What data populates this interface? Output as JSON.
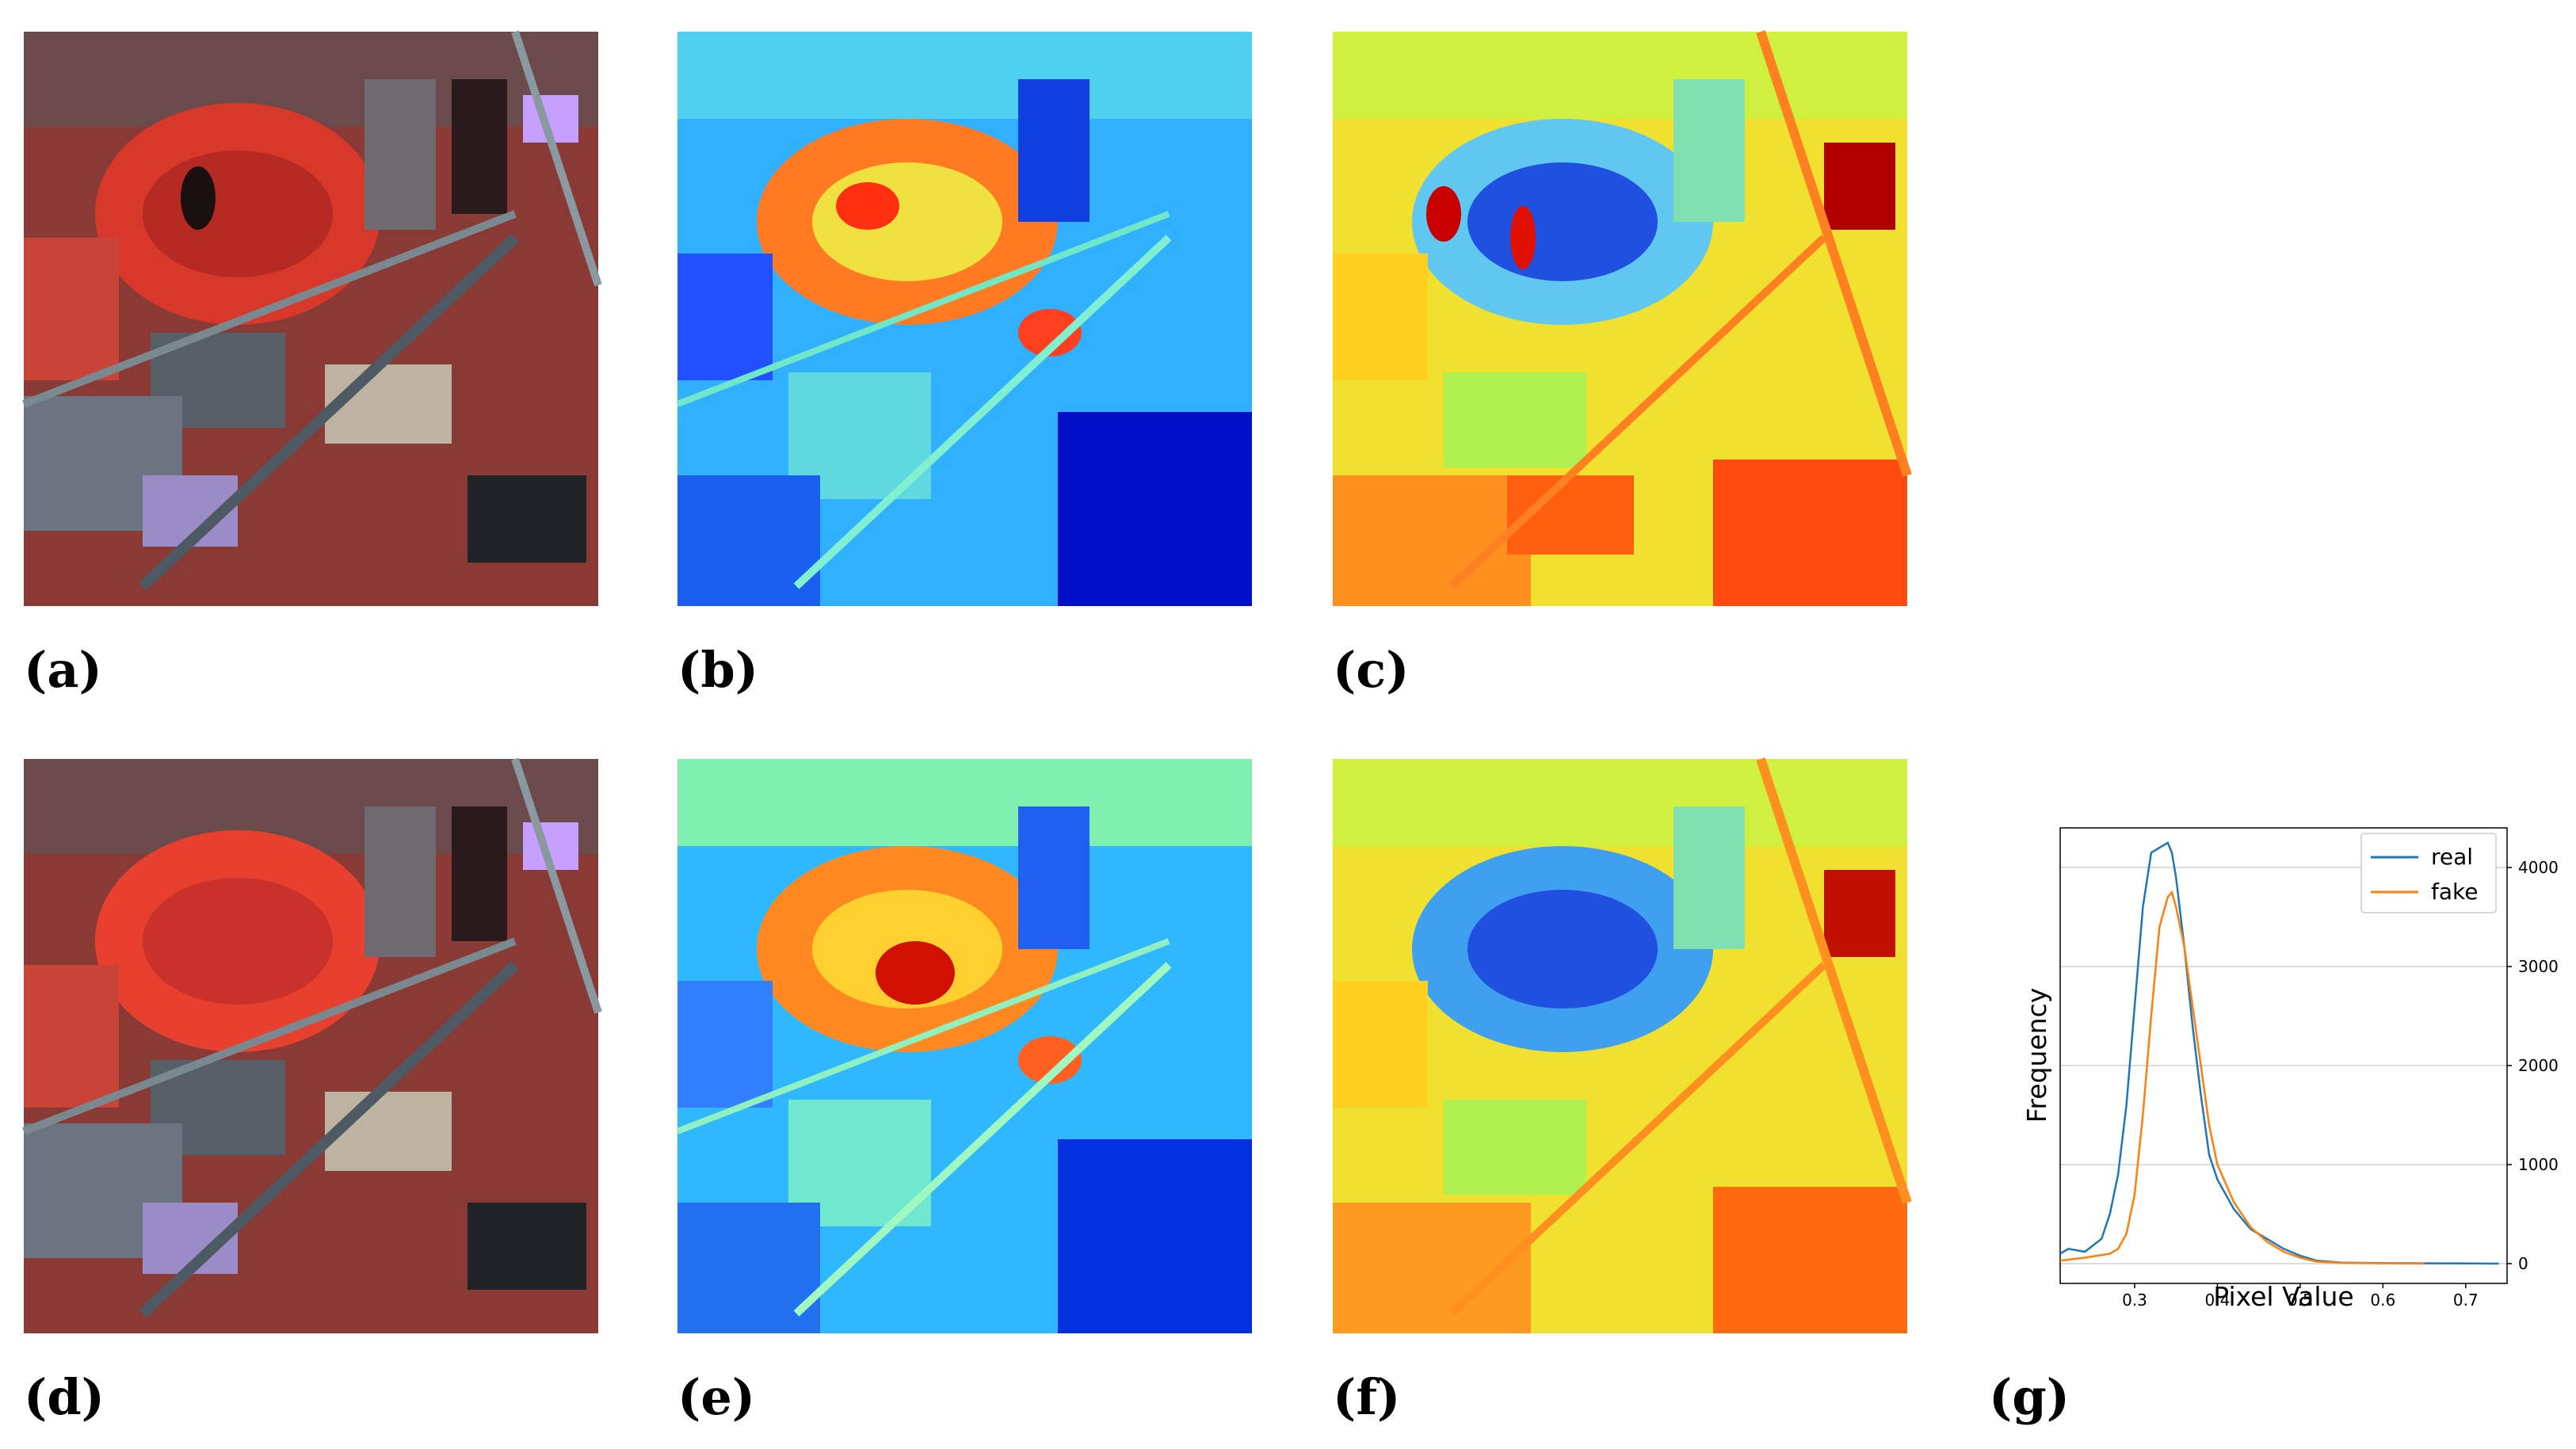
{
  "figure": {
    "panels": [
      {
        "id": "a",
        "label": "(a)",
        "kind": "false-color-satellite-image"
      },
      {
        "id": "b",
        "label": "(b)",
        "kind": "jet-colormap-heatmap"
      },
      {
        "id": "c",
        "label": "(c)",
        "kind": "jet-colormap-heatmap"
      },
      {
        "id": "d",
        "label": "(d)",
        "kind": "false-color-satellite-image"
      },
      {
        "id": "e",
        "label": "(e)",
        "kind": "jet-colormap-heatmap"
      },
      {
        "id": "f",
        "label": "(f)",
        "kind": "jet-colormap-heatmap"
      },
      {
        "id": "g",
        "label": "(g)",
        "kind": "histogram-line-chart"
      }
    ],
    "colors": {
      "jet_low": "#0000c8",
      "jet_mid": "#40e0d0",
      "jet_high": "#ff2000",
      "satellite_vegetation": "#d43a2c",
      "satellite_urban": "#5d6e78",
      "satellite_roof": "#c7a0ff"
    }
  },
  "chart_data": {
    "type": "line",
    "xlabel": "Pixel Value",
    "ylabel": "Frequency",
    "xlim": [
      0.21,
      0.75
    ],
    "ylim": [
      -200,
      4400
    ],
    "xticks": [
      0.3,
      0.4,
      0.5,
      0.6,
      0.7
    ],
    "xtick_labels": [
      "0.3",
      "0.4",
      "0.5",
      "0.6",
      "0.7"
    ],
    "yticks": [
      0,
      1000,
      2000,
      3000,
      4000
    ],
    "ytick_labels": [
      "0",
      "1000",
      "2000",
      "3000",
      "4000"
    ],
    "y_axis_side": "right",
    "grid": "horizontal",
    "legend_position": "top-right",
    "series": [
      {
        "name": "real",
        "color": "#1f77b4",
        "x": [
          0.21,
          0.22,
          0.24,
          0.26,
          0.27,
          0.28,
          0.29,
          0.3,
          0.31,
          0.32,
          0.33,
          0.34,
          0.345,
          0.35,
          0.36,
          0.37,
          0.38,
          0.39,
          0.4,
          0.42,
          0.44,
          0.46,
          0.48,
          0.5,
          0.52,
          0.55,
          0.6,
          0.65,
          0.7,
          0.74
        ],
        "y": [
          100,
          150,
          120,
          250,
          500,
          900,
          1600,
          2600,
          3600,
          4150,
          4200,
          4250,
          4150,
          3900,
          3200,
          2400,
          1700,
          1100,
          850,
          550,
          350,
          250,
          150,
          80,
          30,
          10,
          5,
          3,
          2,
          0
        ]
      },
      {
        "name": "fake",
        "color": "#ff7f0e",
        "x": [
          0.21,
          0.24,
          0.27,
          0.28,
          0.29,
          0.3,
          0.31,
          0.32,
          0.33,
          0.34,
          0.345,
          0.35,
          0.36,
          0.37,
          0.38,
          0.39,
          0.4,
          0.42,
          0.44,
          0.46,
          0.48,
          0.5,
          0.52,
          0.55,
          0.6,
          0.65
        ],
        "y": [
          30,
          60,
          100,
          150,
          300,
          700,
          1500,
          2500,
          3400,
          3700,
          3750,
          3600,
          3200,
          2600,
          2000,
          1400,
          1000,
          620,
          370,
          220,
          120,
          60,
          20,
          8,
          3,
          0
        ]
      }
    ]
  }
}
